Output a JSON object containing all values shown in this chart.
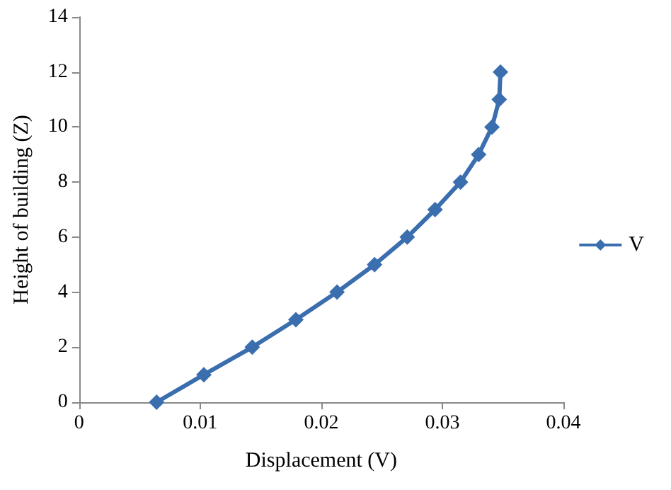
{
  "chart_data": {
    "type": "line",
    "xlabel": "Displacement (V)",
    "ylabel": "Height of building (Z)",
    "series": [
      {
        "name": "V",
        "color": "#3a6eaf",
        "x": [
          0.0064,
          0.0103,
          0.0143,
          0.0179,
          0.0213,
          0.0244,
          0.0271,
          0.0294,
          0.0315,
          0.033,
          0.0341,
          0.0347,
          0.0348
        ],
        "values": [
          0,
          1,
          2,
          3,
          4,
          5,
          6,
          7,
          8,
          9,
          10,
          11,
          12
        ]
      }
    ],
    "xlim": [
      0,
      0.04
    ],
    "xticks": [
      0,
      0.01,
      0.02,
      0.03,
      0.04
    ],
    "ylim": [
      0,
      14
    ],
    "yticks": [
      0,
      2,
      4,
      6,
      8,
      10,
      12,
      14
    ],
    "grid": false,
    "legend": "right",
    "marker": "diamond",
    "line_style": "solid"
  }
}
